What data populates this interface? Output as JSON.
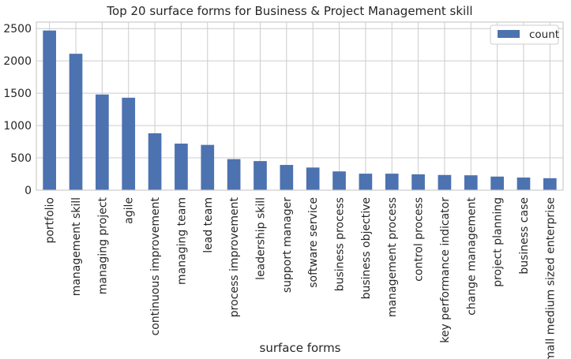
{
  "chart_data": {
    "type": "bar",
    "title": "Top 20 surface forms for Business & Project Management skill",
    "xlabel": "surface forms",
    "ylabel": "",
    "ylim": [
      0,
      2600
    ],
    "yticks": [
      0,
      500,
      1000,
      1500,
      2000,
      2500
    ],
    "grid": true,
    "legend_position": "top-right",
    "bar_color": "#4c72b0",
    "categories": [
      "portfolio",
      "management skill",
      "managing project",
      "agile",
      "continuous improvement",
      "managing team",
      "lead team",
      "process improvement",
      "leadership skill",
      "support manager",
      "software service",
      "business process",
      "business objective",
      "management process",
      "control process",
      "key performance indicator",
      "change management",
      "project planning",
      "business case",
      "small medium sized enterprise"
    ],
    "series": [
      {
        "name": "count",
        "values": [
          2470,
          2110,
          1480,
          1430,
          880,
          720,
          700,
          480,
          450,
          390,
          350,
          290,
          255,
          255,
          245,
          235,
          230,
          210,
          195,
          185
        ]
      }
    ]
  }
}
